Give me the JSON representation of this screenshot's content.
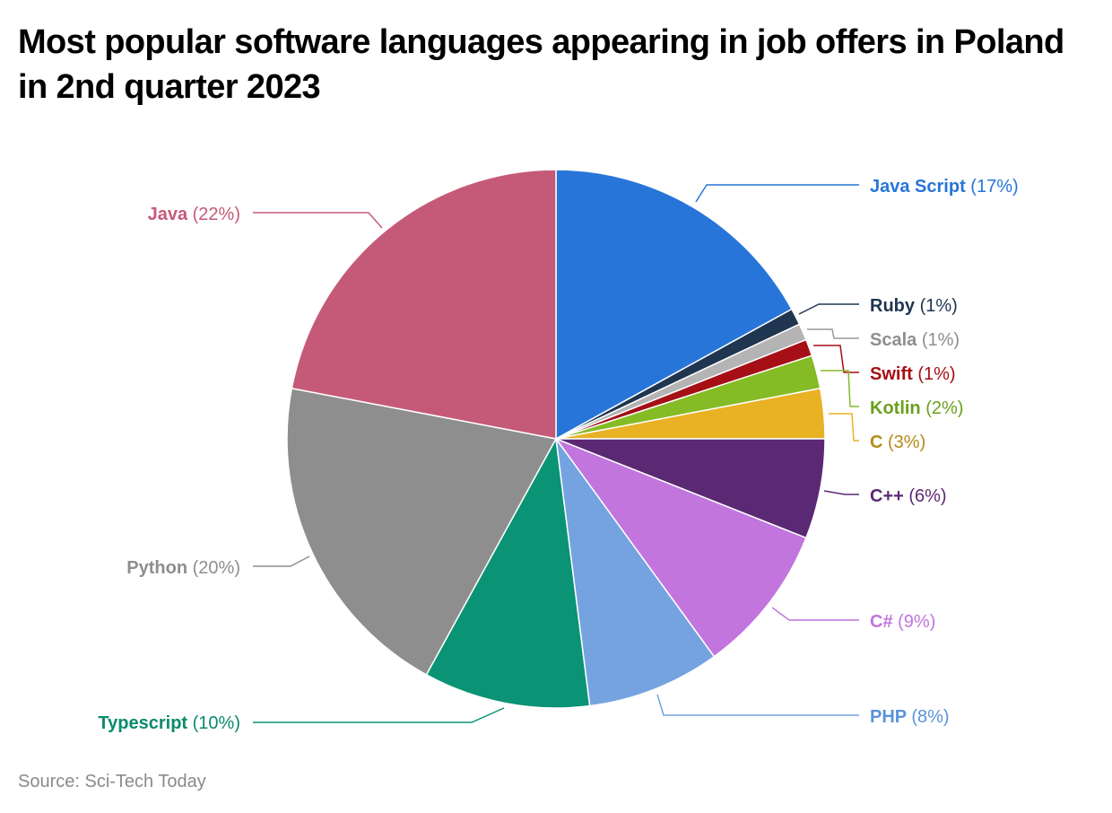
{
  "title": "Most popular software languages appearing in job offers in Poland in 2nd quarter 2023",
  "source": "Source: Sci-Tech Today",
  "chart_data": {
    "type": "pie",
    "title": "Most popular software languages appearing in job offers in Poland in 2nd quarter 2023",
    "source": "Source: Sci-Tech Today",
    "start_angle": "12 o'clock, clockwise",
    "categories": [
      "Java Script",
      "Ruby",
      "Scala",
      "Swift",
      "Kotlin",
      "C",
      "C++",
      "C#",
      "PHP",
      "Typescript",
      "Python",
      "Java"
    ],
    "values": [
      17,
      1,
      1,
      1,
      2,
      3,
      6,
      9,
      8,
      10,
      20,
      22
    ],
    "unit": "%",
    "colors": [
      "#2775d9",
      "#1f3550",
      "#b4b4b4",
      "#a50f15",
      "#85bb25",
      "#e9b124",
      "#5b2873",
      "#c175dd",
      "#74a3e0",
      "#0a9374",
      "#8e8e8e",
      "#c55a78"
    ],
    "label_colors": [
      "#2775d9",
      "#1f3550",
      "#8e8e8e",
      "#a50f15",
      "#6aa01c",
      "#b58a1a",
      "#5b2873",
      "#c175dd",
      "#5b93d9",
      "#0a8a6c",
      "#8e8e8e",
      "#c55a78"
    ],
    "labels": [
      {
        "name": "Java Script",
        "pct": "(17%)"
      },
      {
        "name": "Ruby",
        "pct": "(1%)"
      },
      {
        "name": "Scala",
        "pct": "(1%)"
      },
      {
        "name": "Swift",
        "pct": "(1%)"
      },
      {
        "name": "Kotlin",
        "pct": "(2%)"
      },
      {
        "name": "C",
        "pct": "(3%)"
      },
      {
        "name": "C++",
        "pct": "(6%)"
      },
      {
        "name": "C#",
        "pct": "(9%)"
      },
      {
        "name": "PHP",
        "pct": "(8%)"
      },
      {
        "name": "Typescript",
        "pct": "(10%)"
      },
      {
        "name": "Python",
        "pct": "(20%)"
      },
      {
        "name": "Java",
        "pct": "(22%)"
      }
    ],
    "legend_position": "outside labels with leader lines"
  }
}
